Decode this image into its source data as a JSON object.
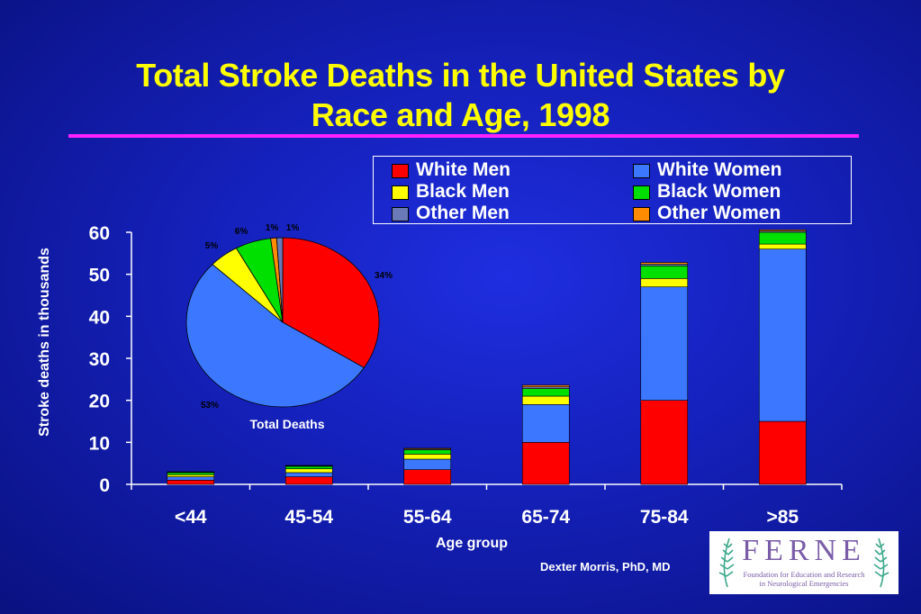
{
  "slide": {
    "title_line1": "Total Stroke Deaths in the United States by",
    "title_line2": "Race and Age, 1998",
    "credit": "Dexter Morris, PhD, MD",
    "logo": {
      "letters": "FERNE",
      "subtitle_line1": "Foundation for Education and Research",
      "subtitle_line2": "in Neurological Emergencies"
    }
  },
  "legend": [
    {
      "label": "White Men",
      "color": "#ff0000"
    },
    {
      "label": "White Women",
      "color": "#3c78ff"
    },
    {
      "label": "Black Men",
      "color": "#ffff00"
    },
    {
      "label": "Black Women",
      "color": "#00e000"
    },
    {
      "label": "Other Men",
      "color": "#6a7ab8"
    },
    {
      "label": "Other Women",
      "color": "#ff8c00"
    }
  ],
  "chart_data": [
    {
      "type": "bar",
      "stacked": true,
      "categories": [
        "<44",
        "45-54",
        "55-64",
        "65-74",
        "75-84",
        ">85"
      ],
      "xlabel": "Age group",
      "ylabel": "Stroke deaths in thousands",
      "ylim": [
        0,
        60
      ],
      "yticks": [
        0,
        10,
        20,
        30,
        40,
        50,
        60
      ],
      "grid": false,
      "legend_position": "top-right",
      "series": [
        {
          "name": "White Men",
          "color": "#ff0000",
          "values": [
            1.0,
            1.8,
            3.5,
            10.0,
            20.0,
            15.0
          ]
        },
        {
          "name": "White Women",
          "color": "#3c78ff",
          "values": [
            0.8,
            1.0,
            2.5,
            9.0,
            27.0,
            41.0
          ]
        },
        {
          "name": "Black Men",
          "color": "#ffff00",
          "values": [
            0.5,
            0.9,
            1.2,
            2.0,
            2.0,
            1.2
          ]
        },
        {
          "name": "Black Women",
          "color": "#00e000",
          "values": [
            0.5,
            0.6,
            1.0,
            1.8,
            3.0,
            2.8
          ]
        },
        {
          "name": "Other Men",
          "color": "#6a7ab8",
          "values": [
            0.1,
            0.1,
            0.2,
            0.4,
            0.4,
            0.3
          ]
        },
        {
          "name": "Other Women",
          "color": "#ff8c00",
          "values": [
            0.1,
            0.1,
            0.2,
            0.4,
            0.4,
            0.3
          ]
        }
      ]
    },
    {
      "type": "pie",
      "title": "Total Deaths",
      "slices": [
        {
          "name": "White Men",
          "value": 34,
          "label": "34%",
          "color": "#ff0000"
        },
        {
          "name": "White Women",
          "value": 53,
          "label": "53%",
          "color": "#3c78ff"
        },
        {
          "name": "Black Men",
          "value": 5,
          "label": "5%",
          "color": "#ffff00"
        },
        {
          "name": "Black Women",
          "value": 6,
          "label": "6%",
          "color": "#00e000"
        },
        {
          "name": "Other Men",
          "value": 1,
          "label": "1%",
          "color": "#ff8c00"
        },
        {
          "name": "Other Women",
          "value": 1,
          "label": "1%",
          "color": "#6a7ab8"
        }
      ]
    }
  ]
}
